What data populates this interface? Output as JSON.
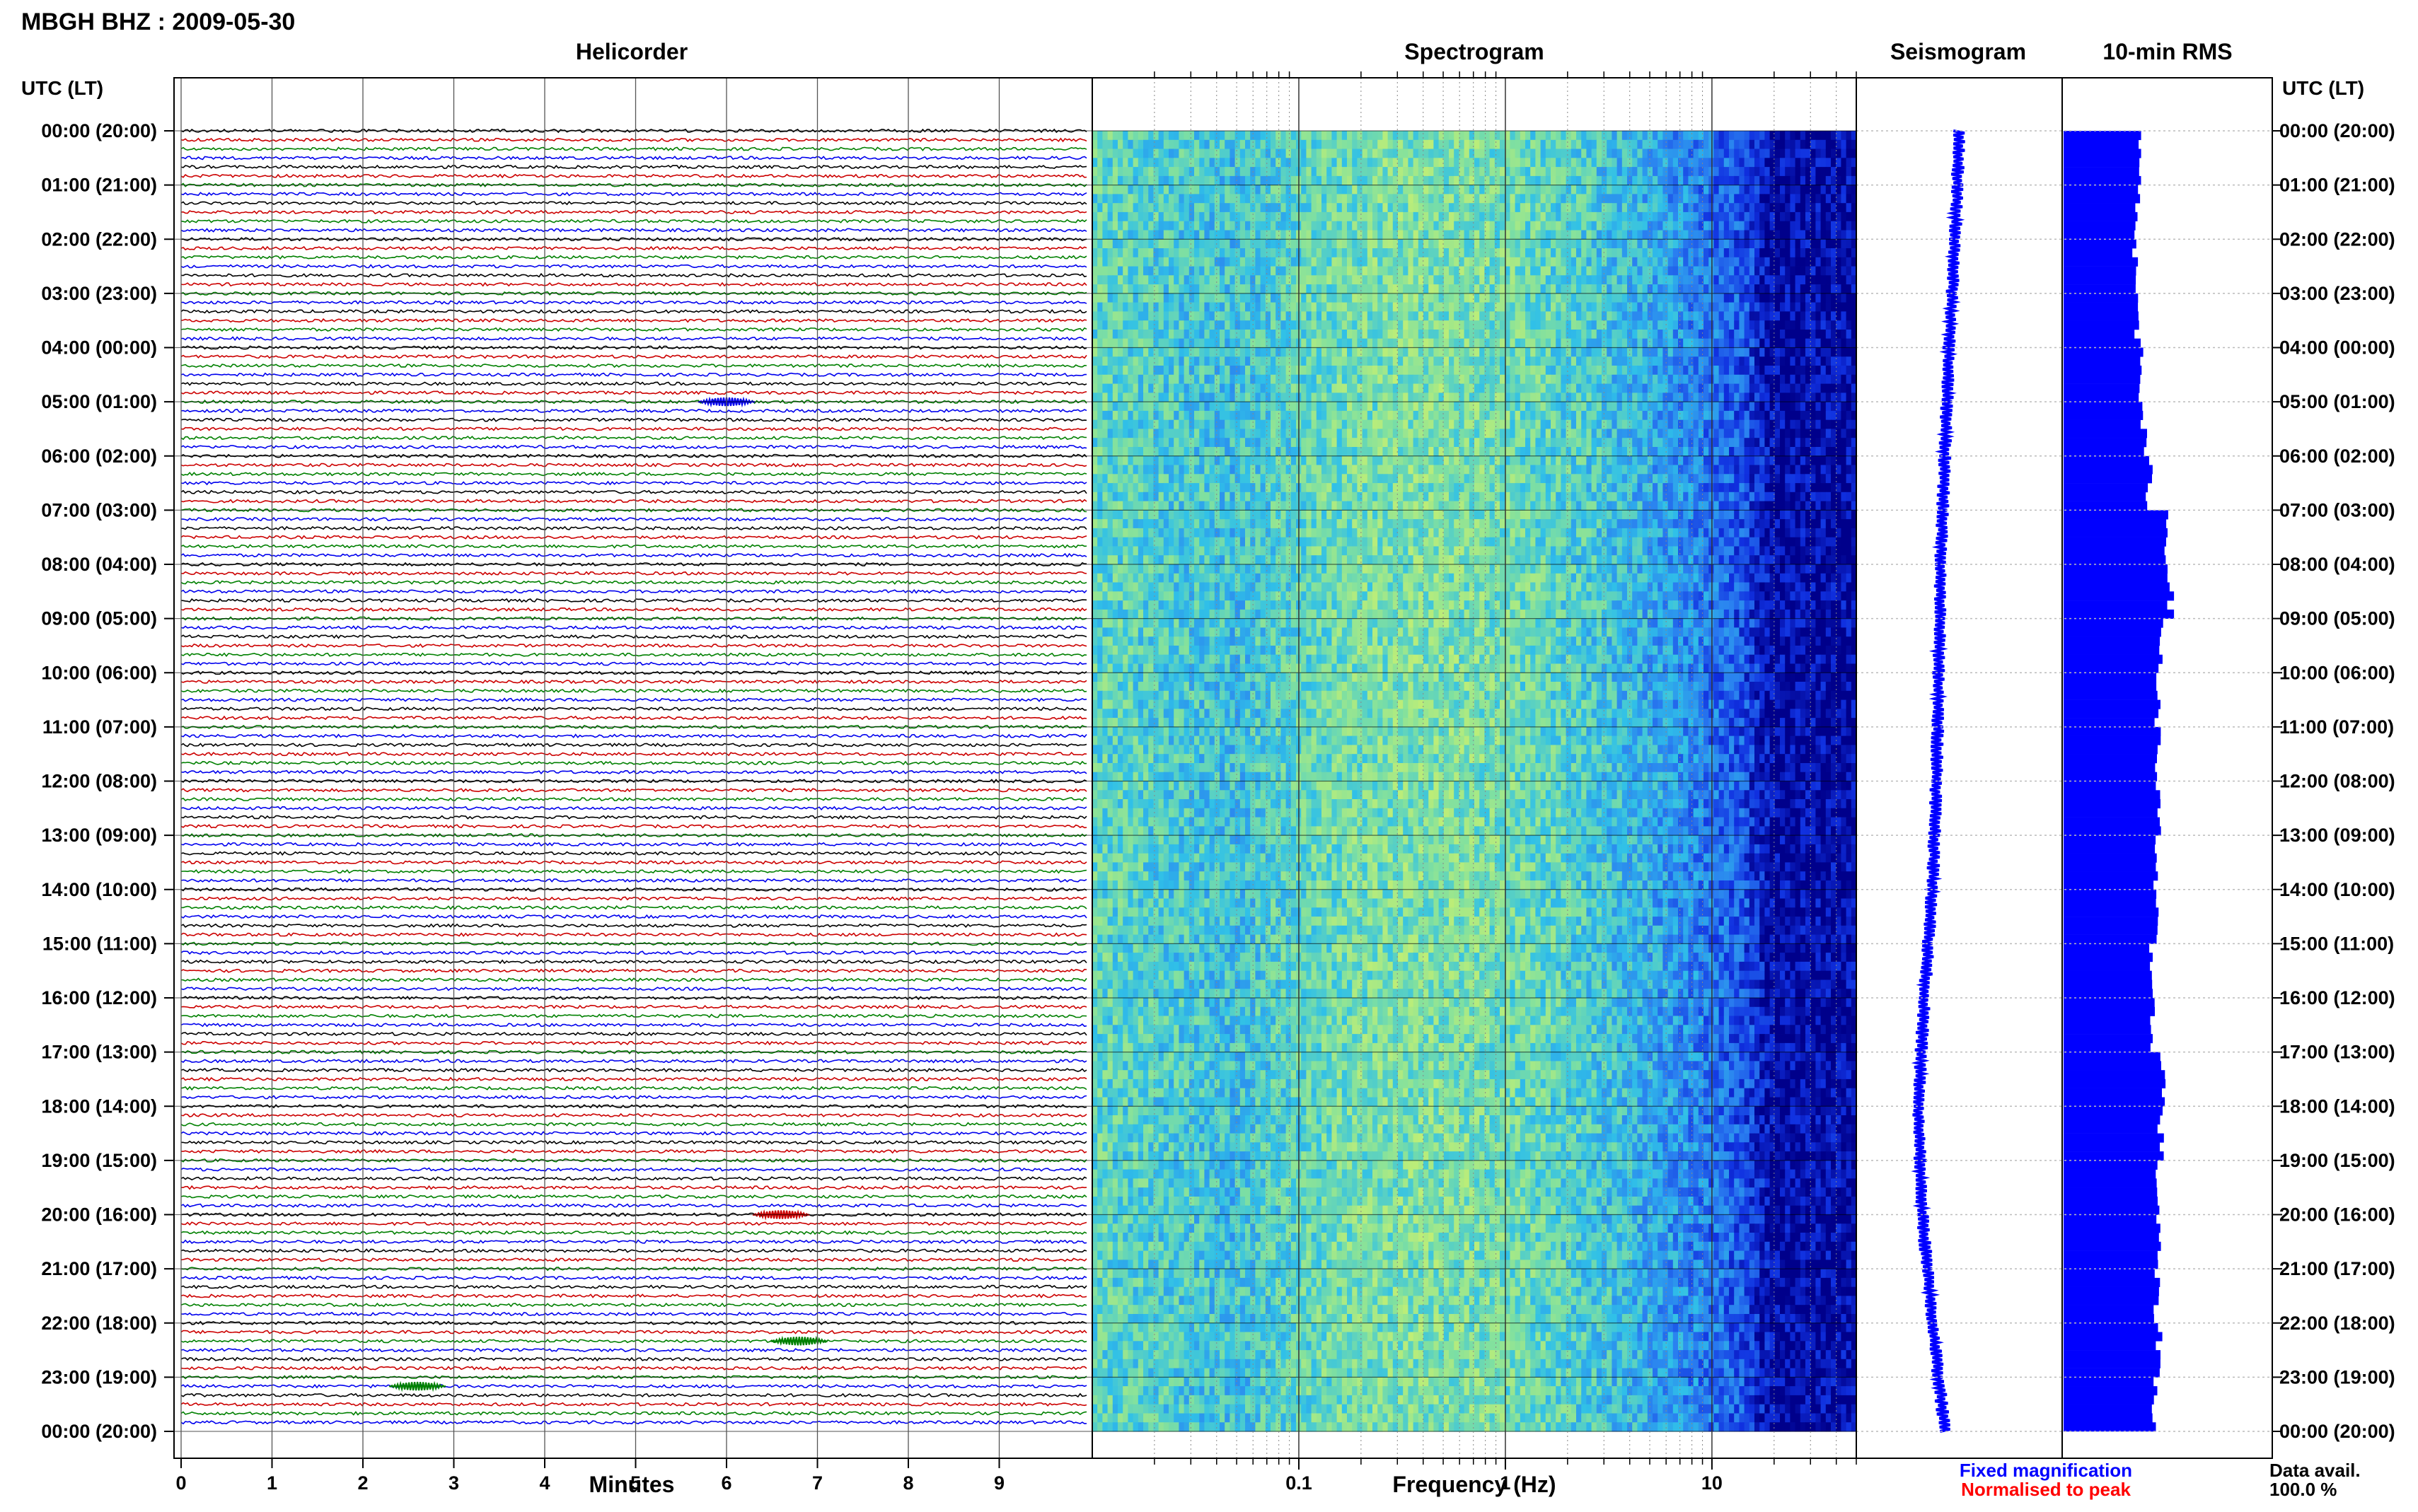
{
  "title": "MBGH BHZ : 2009-05-30",
  "panels": {
    "helicorder": "Helicorder",
    "spectrogram": "Spectrogram",
    "seismogram": "Seismogram",
    "rms": "10-min RMS"
  },
  "axis": {
    "time_label": "UTC (LT)",
    "minutes_label": "Minutes",
    "frequency_label": "Frequency (Hz)"
  },
  "legend": {
    "fixed": "Fixed magnification",
    "normalised": "Normalised to peak",
    "fixed_color": "#0000ff",
    "normalised_color": "#ff0000"
  },
  "data_avail": {
    "label": "Data avail.",
    "value": "100.0 %"
  },
  "colors": {
    "trace_cycle": [
      "#000000",
      "#cc0000",
      "#008000",
      "#0000ee"
    ],
    "rms_bar": "#0000ff",
    "seismogram": "#0000ff"
  },
  "chart_data": [
    {
      "type": "line",
      "panel": "Helicorder",
      "xlabel": "Minutes",
      "x_ticks": [
        "0",
        "1",
        "2",
        "3",
        "4",
        "5",
        "6",
        "7",
        "8",
        "9"
      ],
      "xlim": [
        0,
        10
      ],
      "y_ticks": [
        "00:00 (20:00)",
        "01:00 (21:00)",
        "02:00 (22:00)",
        "03:00 (23:00)",
        "04:00 (00:00)",
        "05:00 (01:00)",
        "06:00 (02:00)",
        "07:00 (03:00)",
        "08:00 (04:00)",
        "09:00 (05:00)",
        "10:00 (06:00)",
        "11:00 (07:00)",
        "12:00 (08:00)",
        "13:00 (09:00)",
        "14:00 (10:00)",
        "15:00 (11:00)",
        "16:00 (12:00)",
        "17:00 (13:00)",
        "18:00 (14:00)",
        "19:00 (15:00)",
        "20:00 (16:00)",
        "21:00 (17:00)",
        "22:00 (18:00)",
        "23:00 (19:00)",
        "00:00 (20:00)"
      ],
      "rows_per_hour": 6,
      "rows": 144,
      "events": [
        {
          "time": "05:00",
          "minute": 6.0,
          "color": "#0000ee"
        },
        {
          "time": "20:00",
          "minute": 6.6,
          "color": "#cc0000"
        },
        {
          "time": "22:20",
          "minute": 6.8,
          "color": "#008000"
        },
        {
          "time": "23:10",
          "minute": 2.6,
          "color": "#008000"
        }
      ]
    },
    {
      "type": "heatmap",
      "panel": "Spectrogram",
      "xlabel": "Frequency (Hz)",
      "x_scale": "log",
      "xlim": [
        0.01,
        50
      ],
      "x_ticks": [
        "0.1",
        "1",
        "10"
      ],
      "x_tick_values": [
        0.1,
        1,
        10
      ],
      "colormap": [
        "#00008b",
        "#1030e0",
        "#2a7ff0",
        "#30c0e8",
        "#80e0a0",
        "#c8f070"
      ],
      "energy_peak_hz": 0.4
    },
    {
      "type": "line",
      "panel": "Seismogram",
      "hours": [
        0,
        2,
        4,
        6,
        8,
        10,
        12,
        14,
        16,
        18,
        20,
        22,
        24
      ],
      "drift": [
        0.5,
        0.48,
        0.45,
        0.43,
        0.41,
        0.4,
        0.39,
        0.37,
        0.33,
        0.3,
        0.32,
        0.37,
        0.43
      ]
    },
    {
      "type": "bar",
      "panel": "10-min RMS",
      "orientation": "horizontal",
      "hours": [
        0,
        1,
        2,
        3,
        4,
        5,
        6,
        7,
        8,
        9,
        10,
        11,
        12,
        13,
        14,
        15,
        16,
        17,
        18,
        19,
        20,
        21,
        22,
        23
      ],
      "values": [
        0.55,
        0.52,
        0.5,
        0.52,
        0.55,
        0.56,
        0.6,
        0.72,
        0.75,
        0.68,
        0.66,
        0.66,
        0.66,
        0.64,
        0.66,
        0.6,
        0.62,
        0.7,
        0.68,
        0.66,
        0.66,
        0.65,
        0.67,
        0.64
      ]
    }
  ]
}
